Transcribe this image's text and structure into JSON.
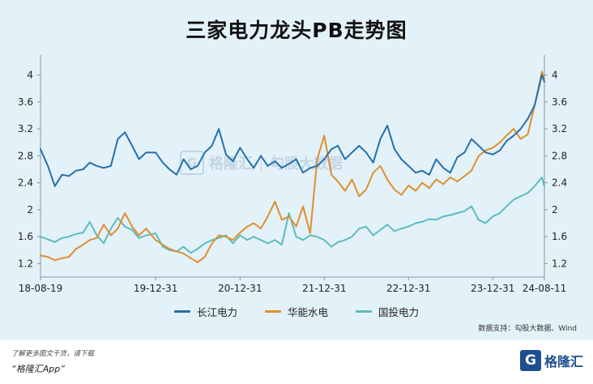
{
  "page": {
    "title": "三家电力龙头PB走势图",
    "source": "数据支持：勾股大数据、Wind",
    "footer_note": "了解更多图文干货，请下载",
    "footer_app": "“格隆汇App”",
    "brand_name": "格隆汇",
    "brand_logo_letter": "G",
    "watermark_text": "格隆汇",
    "watermark_text2": "勾股大数据"
  },
  "chart_data": {
    "type": "line",
    "x": [
      "2018-08-19",
      "2018-09-20",
      "2018-10-20",
      "2018-11-20",
      "2018-12-20",
      "2019-01-20",
      "2019-02-20",
      "2019-03-20",
      "2019-04-20",
      "2019-05-20",
      "2019-06-20",
      "2019-07-20",
      "2019-08-20",
      "2019-09-20",
      "2019-10-20",
      "2019-11-20",
      "2019-12-31",
      "2020-01-31",
      "2020-02-29",
      "2020-03-31",
      "2020-04-30",
      "2020-05-31",
      "2020-06-30",
      "2020-07-31",
      "2020-08-31",
      "2020-09-30",
      "2020-10-31",
      "2020-11-30",
      "2020-12-31",
      "2021-01-31",
      "2021-02-28",
      "2021-03-31",
      "2021-04-30",
      "2021-05-31",
      "2021-06-30",
      "2021-07-31",
      "2021-08-31",
      "2021-09-30",
      "2021-10-31",
      "2021-11-30",
      "2021-12-31",
      "2022-01-31",
      "2022-02-28",
      "2022-03-31",
      "2022-04-30",
      "2022-05-31",
      "2022-06-30",
      "2022-07-31",
      "2022-08-31",
      "2022-09-30",
      "2022-10-31",
      "2022-11-30",
      "2022-12-31",
      "2023-01-31",
      "2023-02-28",
      "2023-03-31",
      "2023-04-30",
      "2023-05-31",
      "2023-06-30",
      "2023-07-31",
      "2023-08-31",
      "2023-09-30",
      "2023-10-31",
      "2023-11-30",
      "2023-12-31",
      "2024-01-31",
      "2024-02-29",
      "2024-03-31",
      "2024-04-30",
      "2024-05-31",
      "2024-06-30",
      "2024-07-31",
      "2024-08-11"
    ],
    "series": [
      {
        "name": "长江电力",
        "color": "#2471a9",
        "values": [
          2.9,
          2.65,
          2.35,
          2.52,
          2.5,
          2.58,
          2.6,
          2.7,
          2.65,
          2.62,
          2.65,
          3.05,
          3.15,
          2.95,
          2.75,
          2.85,
          2.85,
          2.7,
          2.6,
          2.52,
          2.75,
          2.6,
          2.65,
          2.85,
          2.95,
          3.2,
          2.82,
          2.72,
          2.92,
          2.75,
          2.62,
          2.8,
          2.65,
          2.72,
          2.62,
          2.68,
          2.75,
          2.55,
          2.62,
          2.65,
          2.75,
          2.9,
          2.95,
          2.75,
          2.85,
          2.95,
          2.85,
          2.7,
          3.05,
          3.25,
          2.9,
          2.75,
          2.65,
          2.55,
          2.58,
          2.52,
          2.75,
          2.62,
          2.55,
          2.78,
          2.85,
          3.05,
          2.95,
          2.85,
          2.82,
          2.88,
          3.02,
          3.1,
          3.2,
          3.35,
          3.55,
          4.0,
          3.9
        ]
      },
      {
        "name": "华能水电",
        "color": "#e08f2c",
        "values": [
          1.32,
          1.3,
          1.25,
          1.28,
          1.3,
          1.42,
          1.48,
          1.55,
          1.58,
          1.78,
          1.62,
          1.72,
          1.95,
          1.75,
          1.62,
          1.72,
          1.55,
          1.48,
          1.42,
          1.38,
          1.35,
          1.28,
          1.22,
          1.3,
          1.5,
          1.62,
          1.6,
          1.55,
          1.66,
          1.75,
          1.8,
          1.72,
          1.9,
          2.12,
          1.85,
          1.9,
          1.75,
          2.05,
          1.65,
          2.75,
          3.1,
          2.52,
          2.42,
          2.28,
          2.45,
          2.2,
          2.3,
          2.55,
          2.65,
          2.45,
          2.3,
          2.22,
          2.36,
          2.28,
          2.4,
          2.32,
          2.45,
          2.38,
          2.48,
          2.42,
          2.5,
          2.58,
          2.8,
          2.88,
          2.92,
          3.0,
          3.1,
          3.2,
          3.05,
          3.12,
          3.55,
          4.05,
          3.95
        ]
      },
      {
        "name": "国投电力",
        "color": "#5bbcc0",
        "values": [
          1.6,
          1.56,
          1.52,
          1.58,
          1.6,
          1.64,
          1.66,
          1.82,
          1.62,
          1.5,
          1.72,
          1.88,
          1.75,
          1.7,
          1.58,
          1.62,
          1.65,
          1.45,
          1.4,
          1.38,
          1.45,
          1.36,
          1.42,
          1.5,
          1.55,
          1.58,
          1.62,
          1.5,
          1.62,
          1.55,
          1.6,
          1.55,
          1.5,
          1.55,
          1.48,
          1.95,
          1.6,
          1.55,
          1.62,
          1.6,
          1.55,
          1.45,
          1.52,
          1.55,
          1.6,
          1.72,
          1.75,
          1.62,
          1.7,
          1.78,
          1.68,
          1.72,
          1.75,
          1.8,
          1.82,
          1.86,
          1.85,
          1.9,
          1.92,
          1.95,
          1.98,
          2.05,
          1.85,
          1.8,
          1.9,
          1.95,
          2.05,
          2.15,
          2.2,
          2.25,
          2.35,
          2.48,
          2.35
        ]
      }
    ],
    "x_ticks": [
      {
        "label": "18-08-19",
        "x": "2018-08-19"
      },
      {
        "label": "19-12-31",
        "x": "2019-12-31"
      },
      {
        "label": "20-12-31",
        "x": "2020-12-31"
      },
      {
        "label": "21-12-31",
        "x": "2021-12-31"
      },
      {
        "label": "22-12-31",
        "x": "2022-12-31"
      },
      {
        "label": "23-12-31",
        "x": "2023-12-31"
      },
      {
        "label": "24-08-11",
        "x": "2024-08-11"
      }
    ],
    "y_ticks": [
      1.2,
      1.6,
      2,
      2.4,
      2.8,
      3.2,
      3.6,
      4
    ],
    "y_tick_labels": [
      "1.2",
      "1.6",
      "2",
      "2.4",
      "2.8",
      "3.2",
      "3.6",
      "4"
    ],
    "ylim": [
      1.0,
      4.2
    ],
    "grid": false,
    "legend_position": "bottom"
  }
}
